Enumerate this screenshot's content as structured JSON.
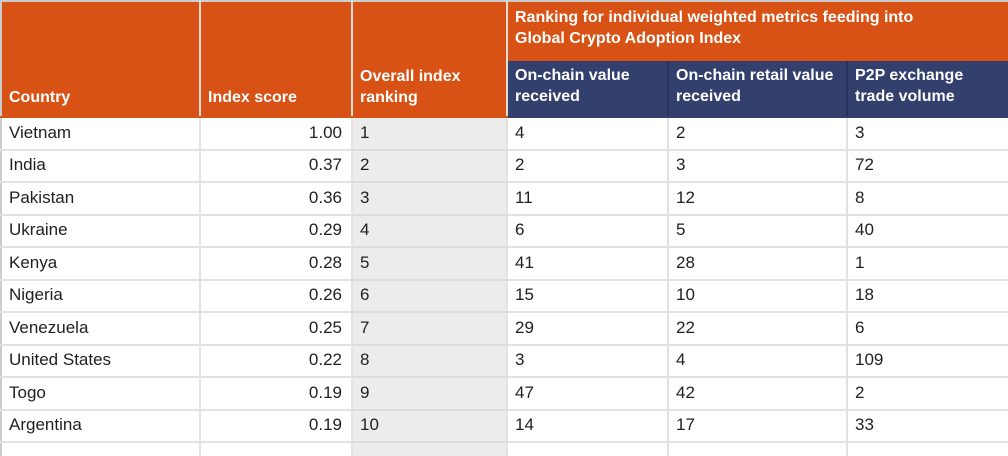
{
  "header": {
    "country": "Country",
    "index_score": "Index score",
    "overall_ranking": "Overall index ranking",
    "metrics_group": "Ranking for individual weighted metrics feeding into Global Crypto Adoption Index",
    "on_chain_value": "On-chain value received",
    "on_chain_retail": "On-chain retail value received",
    "p2p_volume": "P2P exchange trade volume"
  },
  "rows": [
    {
      "country": "Vietnam",
      "index_score": "1.00",
      "overall_ranking": "1",
      "on_chain_value": "4",
      "on_chain_retail": "2",
      "p2p_volume": "3"
    },
    {
      "country": "India",
      "index_score": "0.37",
      "overall_ranking": "2",
      "on_chain_value": "2",
      "on_chain_retail": "3",
      "p2p_volume": "72"
    },
    {
      "country": "Pakistan",
      "index_score": "0.36",
      "overall_ranking": "3",
      "on_chain_value": "11",
      "on_chain_retail": "12",
      "p2p_volume": "8"
    },
    {
      "country": "Ukraine",
      "index_score": "0.29",
      "overall_ranking": "4",
      "on_chain_value": "6",
      "on_chain_retail": "5",
      "p2p_volume": "40"
    },
    {
      "country": "Kenya",
      "index_score": "0.28",
      "overall_ranking": "5",
      "on_chain_value": "41",
      "on_chain_retail": "28",
      "p2p_volume": "1"
    },
    {
      "country": "Nigeria",
      "index_score": "0.26",
      "overall_ranking": "6",
      "on_chain_value": "15",
      "on_chain_retail": "10",
      "p2p_volume": "18"
    },
    {
      "country": "Venezuela",
      "index_score": "0.25",
      "overall_ranking": "7",
      "on_chain_value": "29",
      "on_chain_retail": "22",
      "p2p_volume": "6"
    },
    {
      "country": "United States",
      "index_score": "0.22",
      "overall_ranking": "8",
      "on_chain_value": "3",
      "on_chain_retail": "4",
      "p2p_volume": "109"
    },
    {
      "country": "Togo",
      "index_score": "0.19",
      "overall_ranking": "9",
      "on_chain_value": "47",
      "on_chain_retail": "42",
      "p2p_volume": "2"
    },
    {
      "country": "Argentina",
      "index_score": "0.19",
      "overall_ranking": "10",
      "on_chain_value": "14",
      "on_chain_retail": "17",
      "p2p_volume": "33"
    }
  ],
  "colors": {
    "header_orange": "#D85215",
    "header_navy": "#333F6D",
    "rank_column_gray": "#ECECEC",
    "grid_line": "#E2E2E2",
    "header_text": "#FFFFFF",
    "body_text": "#1F1F1F"
  },
  "chart_data": {
    "type": "table",
    "title": "Ranking for individual weighted metrics feeding into Global Crypto Adoption Index",
    "columns": [
      "Country",
      "Index score",
      "Overall index ranking",
      "On-chain value received",
      "On-chain retail value received",
      "P2P exchange trade volume"
    ],
    "rows": [
      [
        "Vietnam",
        1.0,
        1,
        4,
        2,
        3
      ],
      [
        "India",
        0.37,
        2,
        2,
        3,
        72
      ],
      [
        "Pakistan",
        0.36,
        3,
        11,
        12,
        8
      ],
      [
        "Ukraine",
        0.29,
        4,
        6,
        5,
        40
      ],
      [
        "Kenya",
        0.28,
        5,
        41,
        28,
        1
      ],
      [
        "Nigeria",
        0.26,
        6,
        15,
        10,
        18
      ],
      [
        "Venezuela",
        0.25,
        7,
        29,
        22,
        6
      ],
      [
        "United States",
        0.22,
        8,
        3,
        4,
        109
      ],
      [
        "Togo",
        0.19,
        9,
        47,
        42,
        2
      ],
      [
        "Argentina",
        0.19,
        10,
        14,
        17,
        33
      ]
    ]
  }
}
